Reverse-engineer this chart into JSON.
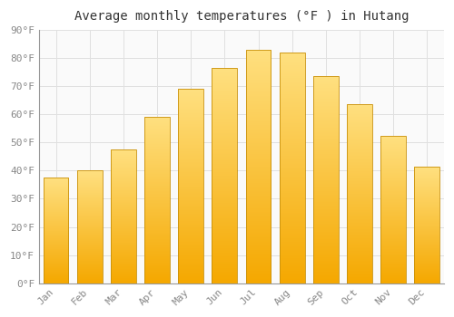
{
  "title": "Average monthly temperatures (°F ) in Hutang",
  "months": [
    "Jan",
    "Feb",
    "Mar",
    "Apr",
    "May",
    "Jun",
    "Jul",
    "Aug",
    "Sep",
    "Oct",
    "Nov",
    "Dec"
  ],
  "values": [
    37.5,
    40.0,
    47.5,
    59.0,
    69.0,
    76.5,
    83.0,
    82.0,
    73.5,
    63.5,
    52.5,
    41.5
  ],
  "bar_color_bottom": "#F5A800",
  "bar_color_top": "#FFE080",
  "bar_edge_color": "#C8900A",
  "background_color": "#FFFFFF",
  "plot_bg_color": "#FAFAFA",
  "grid_color": "#E0E0E0",
  "text_color": "#888888",
  "title_color": "#333333",
  "ylim": [
    0,
    90
  ],
  "yticks": [
    0,
    10,
    20,
    30,
    40,
    50,
    60,
    70,
    80,
    90
  ],
  "title_fontsize": 10,
  "tick_fontsize": 8,
  "bar_width": 0.75
}
